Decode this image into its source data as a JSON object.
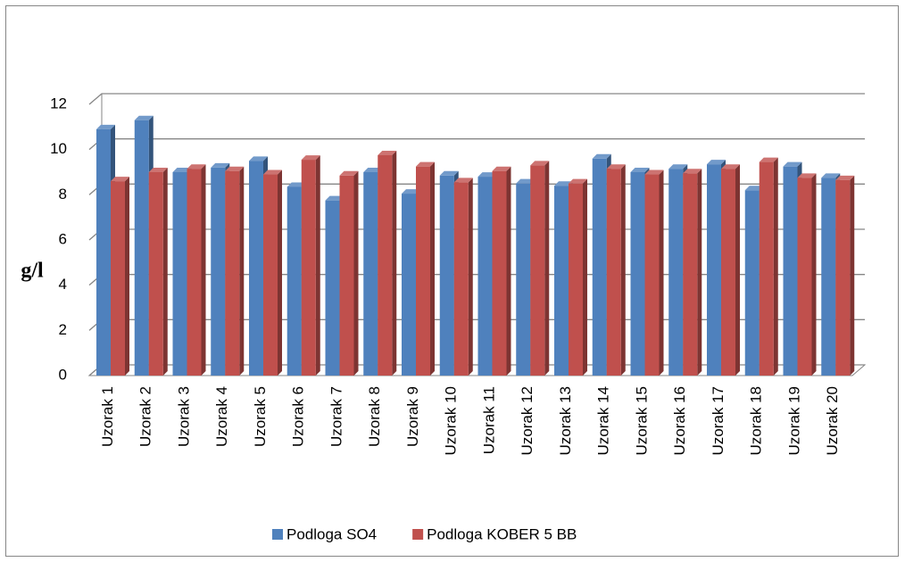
{
  "chart_data": {
    "type": "bar3d",
    "y_label": "g/l",
    "categories": [
      "Uzorak 1",
      "Uzorak 2",
      "Uzorak 3",
      "Uzorak 4",
      "Uzorak 5",
      "Uzorak 6",
      "Uzorak 7",
      "Uzorak 8",
      "Uzorak 9",
      "Uzorak 10",
      "Uzorak 11",
      "Uzorak 12",
      "Uzorak 13",
      "Uzorak 14",
      "Uzorak 15",
      "Uzorak 16",
      "Uzorak 17",
      "Uzorak 18",
      "Uzorak 19",
      "Uzorak 20"
    ],
    "series": [
      {
        "name": "Podloga SO4",
        "color": "#4f81bd",
        "values": [
          10.9,
          11.3,
          9.0,
          9.2,
          9.5,
          8.35,
          7.75,
          9.0,
          8.05,
          8.85,
          8.8,
          8.5,
          8.4,
          9.6,
          9.0,
          9.15,
          9.35,
          8.2,
          9.25,
          8.75
        ]
      },
      {
        "name": "Podloga KOBER 5 BB",
        "color": "#c0504d",
        "values": [
          8.6,
          9.0,
          9.15,
          9.05,
          8.9,
          9.55,
          8.85,
          9.75,
          9.25,
          8.55,
          9.05,
          9.3,
          8.5,
          9.15,
          8.9,
          8.95,
          9.15,
          9.45,
          8.75,
          8.65
        ]
      }
    ],
    "ylim": [
      0,
      12
    ],
    "yticks": [
      0,
      2,
      4,
      6,
      8,
      10,
      12
    ],
    "grid": true,
    "legend": "bottom"
  }
}
